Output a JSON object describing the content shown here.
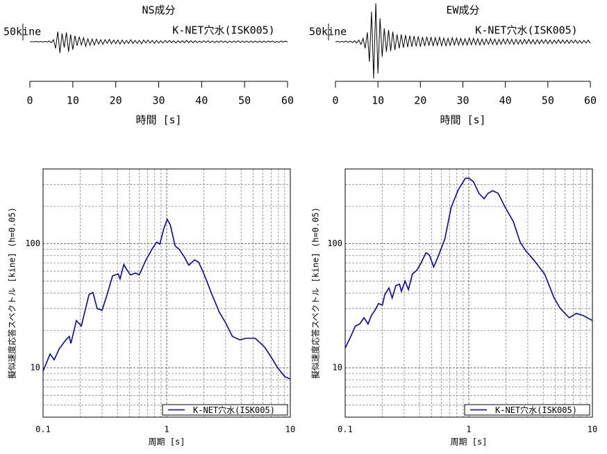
{
  "chart_data": [
    {
      "type": "wave",
      "title": "NS成分",
      "annotation": "K-NET穴水(ISK005)",
      "xlabel": "時間 [s]",
      "scale_bar": {
        "value": 50,
        "label": "50kine"
      },
      "color": "#000000",
      "xlim": [
        0,
        60
      ],
      "xticks": [
        0,
        10,
        20,
        30,
        40,
        50,
        60
      ],
      "x": [
        0,
        0.5,
        1,
        1.5,
        2,
        2.5,
        3,
        3.5,
        4,
        4.5,
        5,
        5.5,
        6,
        6.5,
        7,
        7.5,
        8,
        8.5,
        9,
        9.5,
        10,
        10.5,
        11,
        11.5,
        12,
        12.5,
        13,
        13.5,
        14,
        14.5,
        15,
        15.5,
        16,
        16.5,
        17,
        17.5,
        18,
        18.5,
        19,
        19.5,
        20,
        20.5,
        21,
        21.5,
        22,
        22.5,
        23,
        23.5,
        24,
        24.5,
        25,
        25.5,
        26,
        26.5,
        27,
        27.5,
        28,
        28.5,
        29,
        29.5,
        30,
        30.5,
        31,
        31.5,
        32,
        32.5,
        33,
        33.5,
        34,
        34.5,
        35,
        35.5,
        36,
        36.5,
        37,
        37.5,
        38,
        38.5,
        39,
        39.5,
        40,
        40.5,
        41,
        41.5,
        42,
        42.5,
        43,
        43.5,
        44,
        44.5,
        45,
        45.5,
        46,
        46.5,
        47,
        47.5,
        48,
        48.5,
        49,
        49.5,
        50,
        50.5,
        51,
        51.5,
        52,
        52.5,
        53,
        53.5,
        54,
        54.5,
        55,
        55.5,
        56,
        56.5,
        57,
        57.5,
        58,
        58.5,
        59,
        59.5,
        60
      ],
      "values": [
        0,
        0,
        0,
        1,
        -1,
        1,
        -1,
        1,
        -1,
        2,
        -3,
        6,
        -20,
        30,
        -34,
        25,
        -18,
        28,
        -30,
        22,
        -24,
        18,
        -12,
        15,
        -10,
        12,
        -14,
        9,
        -11,
        8,
        -10,
        8,
        -7,
        6,
        -8,
        6,
        -5,
        7,
        -6,
        5,
        -6,
        5,
        -7,
        5,
        -6,
        4,
        -5,
        6,
        -5,
        4,
        -5,
        4,
        -6,
        5,
        -4,
        5,
        -4,
        4,
        -5,
        4,
        -4,
        3,
        -4,
        4,
        -3,
        4,
        -3,
        3,
        -4,
        3,
        -3,
        3,
        -3,
        4,
        -3,
        3,
        -3,
        3,
        -3,
        2,
        -3,
        3,
        -2,
        3,
        -3,
        2,
        -3,
        2,
        -2,
        3,
        -2,
        2,
        -3,
        2,
        -2,
        2,
        -2,
        3,
        -2,
        2,
        -2,
        2,
        -2,
        2,
        -2,
        2,
        -2,
        2,
        -2,
        2,
        -2,
        2,
        -1,
        2,
        -2,
        1,
        -2,
        2,
        -1,
        2,
        -1
      ]
    },
    {
      "type": "wave",
      "title": "EW成分",
      "annotation": "K-NET穴水(ISK005)",
      "xlabel": "時間 [s]",
      "scale_bar": {
        "value": 50,
        "label": "50kine"
      },
      "color": "#000000",
      "xlim": [
        0,
        60
      ],
      "xticks": [
        0,
        10,
        20,
        30,
        40,
        50,
        60
      ],
      "x": [
        0,
        0.5,
        1,
        1.5,
        2,
        2.5,
        3,
        3.5,
        4,
        4.5,
        5,
        5.5,
        6,
        6.5,
        7,
        7.5,
        8,
        8.5,
        9,
        9.5,
        10,
        10.5,
        11,
        11.5,
        12,
        12.5,
        13,
        13.5,
        14,
        14.5,
        15,
        15.5,
        16,
        16.5,
        17,
        17.5,
        18,
        18.5,
        19,
        19.5,
        20,
        20.5,
        21,
        21.5,
        22,
        22.5,
        23,
        23.5,
        24,
        24.5,
        25,
        25.5,
        26,
        26.5,
        27,
        27.5,
        28,
        28.5,
        29,
        29.5,
        30,
        30.5,
        31,
        31.5,
        32,
        32.5,
        33,
        33.5,
        34,
        34.5,
        35,
        35.5,
        36,
        36.5,
        37,
        37.5,
        38,
        38.5,
        39,
        39.5,
        40,
        40.5,
        41,
        41.5,
        42,
        42.5,
        43,
        43.5,
        44,
        44.5,
        45,
        45.5,
        46,
        46.5,
        47,
        47.5,
        48,
        48.5,
        49,
        49.5,
        50,
        50.5,
        51,
        51.5,
        52,
        52.5,
        53,
        53.5,
        54,
        54.5,
        55,
        55.5,
        56,
        56.5,
        57,
        57.5,
        58,
        58.5,
        59,
        59.5,
        60
      ],
      "values": [
        0,
        1,
        -1,
        1,
        -1,
        2,
        -2,
        2,
        -3,
        3,
        -4,
        5,
        -8,
        10,
        -20,
        28,
        -60,
        90,
        -110,
        115,
        -95,
        70,
        -45,
        40,
        -30,
        35,
        -28,
        30,
        -25,
        22,
        -20,
        22,
        -18,
        20,
        -16,
        18,
        -15,
        17,
        -14,
        16,
        -15,
        14,
        -13,
        15,
        -12,
        14,
        -13,
        12,
        -11,
        13,
        -12,
        11,
        -12,
        10,
        -11,
        12,
        -10,
        11,
        -10,
        10,
        -10,
        9,
        -10,
        11,
        -9,
        10,
        -9,
        9,
        -10,
        8,
        -9,
        8,
        -8,
        9,
        -8,
        8,
        -9,
        7,
        -8,
        8,
        -7,
        8,
        -7,
        7,
        -8,
        7,
        -7,
        6,
        -7,
        7,
        -6,
        7,
        -6,
        6,
        -7,
        6,
        -6,
        6,
        -5,
        6,
        -6,
        5,
        -6,
        5,
        -5,
        6,
        -5,
        5,
        -5,
        5,
        -5,
        5,
        -4,
        5,
        -5,
        4,
        -5,
        4,
        -4,
        5,
        -4
      ]
    },
    {
      "type": "spectrum",
      "xlabel": "周期 [s]",
      "ylabel": "擬似速度応答スペクトル [kine] (h=0.05)",
      "xlog": true,
      "ylog": true,
      "grid": true,
      "legend": "lower right",
      "xlim": [
        0.1,
        10
      ],
      "ylim": [
        4,
        400
      ],
      "xticks": [
        0.1,
        1,
        10
      ],
      "yticks": [
        10,
        100
      ],
      "xminor": [
        0.2,
        0.3,
        0.4,
        0.5,
        0.6,
        0.7,
        0.8,
        0.9,
        2,
        3,
        4,
        5,
        6,
        7,
        8,
        9
      ],
      "yminor": [
        5,
        6,
        7,
        8,
        9,
        20,
        30,
        40,
        50,
        60,
        70,
        80,
        90,
        200,
        300
      ],
      "x": [
        0.1,
        0.114,
        0.123,
        0.135,
        0.153,
        0.163,
        0.168,
        0.186,
        0.204,
        0.235,
        0.253,
        0.274,
        0.3,
        0.33,
        0.365,
        0.405,
        0.42,
        0.45,
        0.47,
        0.51,
        0.56,
        0.6,
        0.68,
        0.77,
        0.83,
        0.88,
        0.95,
        1.01,
        1.07,
        1.17,
        1.26,
        1.38,
        1.51,
        1.68,
        1.81,
        1.96,
        2.11,
        2.32,
        2.67,
        3.0,
        3.4,
        3.9,
        4.4,
        5.2,
        6.2,
        7.0,
        7.9,
        9.0,
        10
      ],
      "series": [
        {
          "name": "K-NET穴水(ISK005)",
          "color": "#0000cc",
          "values": [
            9.4,
            12.9,
            11.6,
            14.2,
            16.8,
            17.9,
            15.7,
            24,
            21.7,
            38.8,
            40.5,
            30,
            29,
            39,
            55,
            57,
            52,
            68,
            63,
            56,
            58,
            56,
            74,
            92,
            103,
            99,
            133,
            157,
            142,
            96,
            90,
            79,
            67,
            74,
            71,
            60,
            50,
            39,
            28,
            23,
            17.9,
            16.8,
            17.3,
            17.3,
            14.7,
            12.2,
            10,
            8.5,
            8.1
          ]
        }
      ]
    },
    {
      "type": "spectrum",
      "xlabel": "周期 [s]",
      "ylabel": "擬似速度応答スペクトル [kine] (h=0.05)",
      "xlog": true,
      "ylog": true,
      "grid": true,
      "legend": "lower right",
      "xlim": [
        0.1,
        10
      ],
      "ylim": [
        4,
        400
      ],
      "xticks": [
        0.1,
        1,
        10
      ],
      "yticks": [
        10,
        100
      ],
      "xminor": [
        0.2,
        0.3,
        0.4,
        0.5,
        0.6,
        0.7,
        0.8,
        0.9,
        2,
        3,
        4,
        5,
        6,
        7,
        8,
        9
      ],
      "yminor": [
        5,
        6,
        7,
        8,
        9,
        20,
        30,
        40,
        50,
        60,
        70,
        80,
        90,
        200,
        300
      ],
      "x": [
        0.1,
        0.111,
        0.121,
        0.131,
        0.142,
        0.153,
        0.163,
        0.174,
        0.186,
        0.2,
        0.209,
        0.226,
        0.24,
        0.257,
        0.275,
        0.285,
        0.305,
        0.325,
        0.35,
        0.38,
        0.41,
        0.45,
        0.48,
        0.52,
        0.56,
        0.64,
        0.72,
        0.82,
        0.94,
        1.0,
        1.09,
        1.21,
        1.33,
        1.43,
        1.56,
        1.73,
        1.97,
        2.29,
        2.6,
        2.88,
        3.35,
        4.1,
        4.9,
        5.5,
        6.5,
        7.4,
        8.4,
        10
      ],
      "series": [
        {
          "name": "K-NET穴水(ISK005)",
          "color": "#0000cc",
          "values": [
            14.4,
            17.9,
            21.7,
            22.5,
            25.3,
            22.5,
            26.4,
            29,
            32.9,
            32,
            38.8,
            44,
            36.5,
            46,
            47.2,
            41.3,
            50,
            42.6,
            57,
            61,
            69.6,
            84.5,
            81,
            65,
            77,
            109,
            196,
            271,
            337,
            337,
            316,
            254,
            230,
            254,
            267,
            254,
            196,
            151,
            103,
            88,
            74,
            57,
            36.5,
            30,
            25.3,
            27.4,
            26.4,
            24
          ]
        }
      ]
    }
  ]
}
